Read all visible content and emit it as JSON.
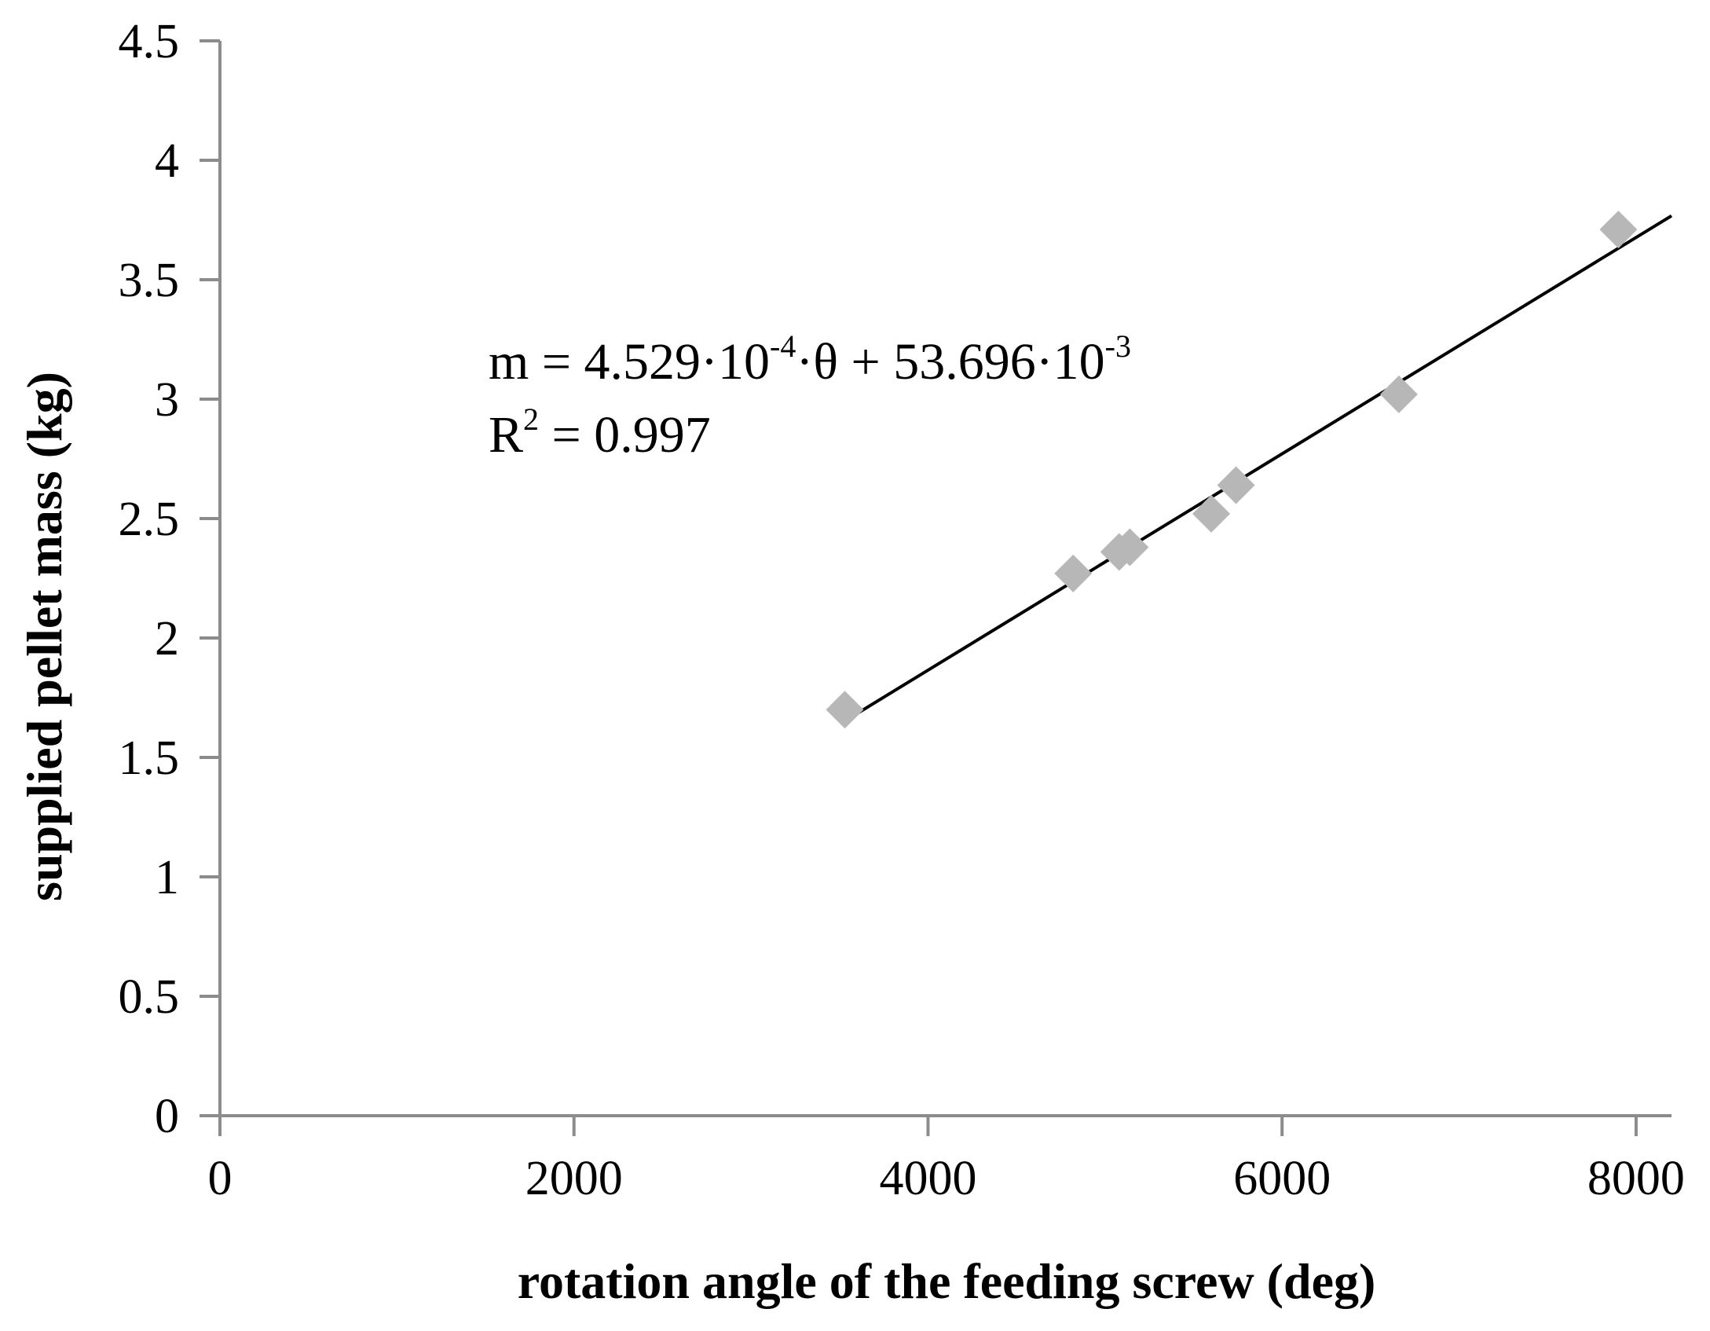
{
  "chart_data": {
    "type": "scatter",
    "title": "",
    "xlabel": "rotation angle of the feeding screw (deg)",
    "ylabel": "supplied pellet mass (kg)",
    "xlim": [
      0,
      8200
    ],
    "ylim": [
      0,
      4.5
    ],
    "xticks": [
      "0",
      "2000",
      "4000",
      "6000",
      "8000"
    ],
    "yticks": [
      "0",
      "0.5",
      "1",
      "1.5",
      "2",
      "2.5",
      "3",
      "3.5",
      "4",
      "4.5"
    ],
    "grid": false,
    "marker_color": "#b7b7b7",
    "trendline_color": "#000000",
    "axis_color": "#8c8c8c",
    "series": [
      {
        "x": [
          3530,
          4820,
          5080,
          5140,
          5600,
          5740,
          6660,
          7900
        ],
        "y": [
          1.7,
          2.27,
          2.36,
          2.38,
          2.52,
          2.64,
          3.02,
          3.71
        ]
      }
    ],
    "trendline": {
      "x_start": 3530,
      "x_end": 8200,
      "slope": 0.0004529,
      "intercept": 0.053696,
      "equation": {
        "m_eq": "m = 4.529·10",
        "exp1": "-4",
        "mid": "·θ + 53.696·10",
        "exp2": "-3"
      },
      "r2": {
        "base": "R",
        "sup": "2",
        "rest": " = 0.997"
      }
    }
  }
}
